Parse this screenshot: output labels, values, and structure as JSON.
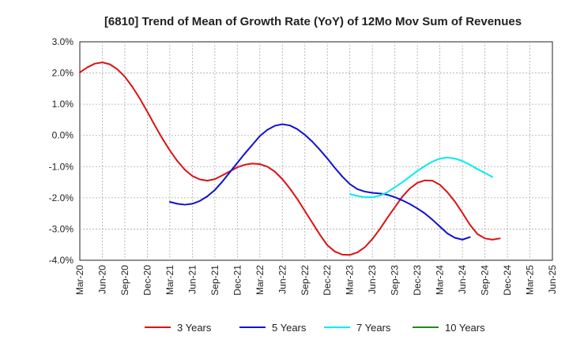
{
  "chart_data": {
    "type": "line",
    "title": "[6810]  Trend of Mean of Growth Rate (YoY) of 12Mo Mov Sum of Revenues",
    "xlabel": "",
    "ylabel": "",
    "ylim": [
      -4.0,
      3.0
    ],
    "yticks": [
      3.0,
      2.0,
      1.0,
      0.0,
      -1.0,
      -2.0,
      -3.0,
      -4.0
    ],
    "ytick_labels": [
      "3.0%",
      "2.0%",
      "1.0%",
      "0.0%",
      "-1.0%",
      "-2.0%",
      "-3.0%",
      "-4.0%"
    ],
    "x_tick_labels": [
      "Mar-20",
      "Jun-20",
      "Sep-20",
      "Dec-20",
      "Mar-21",
      "Jun-21",
      "Sep-21",
      "Dec-21",
      "Mar-22",
      "Jun-22",
      "Sep-22",
      "Dec-22",
      "Mar-23",
      "Jun-23",
      "Sep-23",
      "Dec-23",
      "Mar-24",
      "Jun-24",
      "Sep-24",
      "Dec-24",
      "Mar-25",
      "Jun-25"
    ],
    "x_range_months": [
      0,
      63
    ],
    "grid": true,
    "legend_position": "bottom",
    "series": [
      {
        "name": "3 Years",
        "color": "#dd1111",
        "start_month": 0,
        "values": [
          2.02,
          2.18,
          2.3,
          2.34,
          2.28,
          2.12,
          1.88,
          1.56,
          1.18,
          0.76,
          0.32,
          -0.1,
          -0.48,
          -0.82,
          -1.1,
          -1.3,
          -1.41,
          -1.45,
          -1.4,
          -1.28,
          -1.15,
          -1.02,
          -0.94,
          -0.9,
          -0.92,
          -1.0,
          -1.16,
          -1.4,
          -1.7,
          -2.04,
          -2.42,
          -2.8,
          -3.18,
          -3.52,
          -3.72,
          -3.82,
          -3.83,
          -3.75,
          -3.58,
          -3.32,
          -3.0,
          -2.64,
          -2.3,
          -1.96,
          -1.7,
          -1.52,
          -1.44,
          -1.45,
          -1.58,
          -1.82,
          -2.12,
          -2.48,
          -2.86,
          -3.16,
          -3.3,
          -3.34,
          -3.3
        ]
      },
      {
        "name": "5 Years",
        "color": "#1111cc",
        "start_month": 12,
        "values": [
          -2.13,
          -2.19,
          -2.22,
          -2.19,
          -2.1,
          -1.95,
          -1.75,
          -1.48,
          -1.18,
          -0.88,
          -0.58,
          -0.3,
          -0.02,
          0.18,
          0.31,
          0.36,
          0.32,
          0.2,
          0.02,
          -0.2,
          -0.46,
          -0.74,
          -1.04,
          -1.32,
          -1.56,
          -1.72,
          -1.8,
          -1.84,
          -1.86,
          -1.9,
          -1.98,
          -2.08,
          -2.2,
          -2.34,
          -2.5,
          -2.7,
          -2.92,
          -3.14,
          -3.28,
          -3.34,
          -3.26
        ]
      },
      {
        "name": "7 Years",
        "color": "#00eeee",
        "start_month": 36,
        "values": [
          -1.88,
          -1.94,
          -1.98,
          -1.98,
          -1.93,
          -1.82,
          -1.66,
          -1.5,
          -1.32,
          -1.14,
          -0.98,
          -0.84,
          -0.74,
          -0.71,
          -0.74,
          -0.82,
          -0.94,
          -1.08,
          -1.2,
          -1.33
        ]
      },
      {
        "name": "10 Years",
        "color": "#228822",
        "start_month": 0,
        "values": []
      }
    ]
  }
}
